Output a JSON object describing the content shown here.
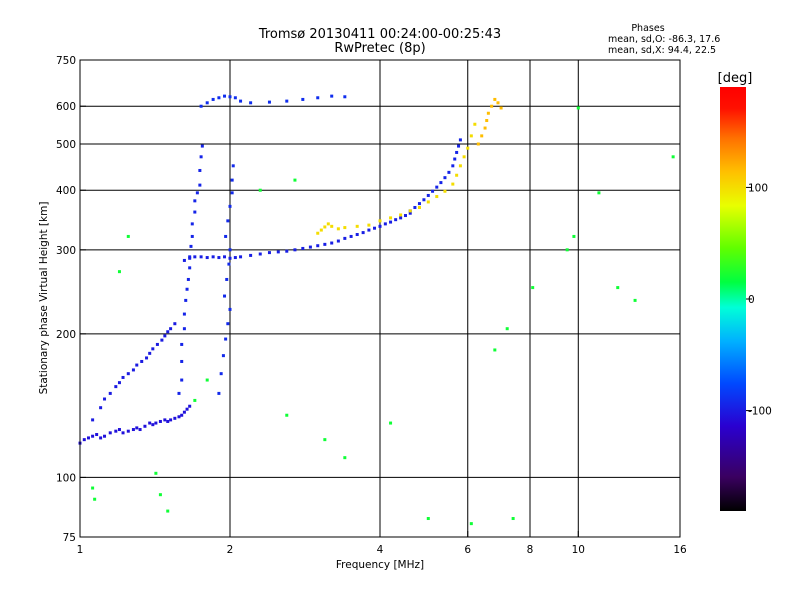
{
  "chart_data": {
    "type": "scatter",
    "title": "Tromsø 20130411 00:24:00-00:25:43",
    "subtitle": "RwPretec (8p)",
    "phases_box": {
      "title": "Phases",
      "line1": "mean, sd,O: -86.3, 17.6",
      "line2": "mean, sd,X:  94.4, 22.5"
    },
    "xlabel": "Frequency [MHz]",
    "ylabel": "Stationary phase Virtual Height [km]",
    "x_scale": "log",
    "y_scale": "log",
    "xlim": [
      1,
      16
    ],
    "ylim": [
      75,
      750
    ],
    "x_ticks": [
      1,
      2,
      4,
      6,
      8,
      10,
      16
    ],
    "x_tick_labels": [
      "1",
      "2",
      "4",
      "6",
      "8",
      "10",
      "16"
    ],
    "x_grid": [
      2,
      4,
      6,
      10
    ],
    "x_minor_grid": [
      8
    ],
    "y_ticks": [
      75,
      100,
      200,
      300,
      400,
      500,
      600,
      750
    ],
    "y_tick_labels": [
      "75",
      "100",
      "200",
      "300",
      "400",
      "500",
      "600",
      "750"
    ],
    "y_grid": [
      100,
      200,
      300,
      400,
      500,
      600
    ],
    "grid": true,
    "colorbar": {
      "label": "[deg]",
      "range": [
        -190,
        190
      ],
      "ticks": [
        100,
        0,
        -100
      ],
      "tick_labels": [
        "100",
        "0",
        "-100"
      ],
      "colors": [
        "#000000",
        "#3a0060",
        "#2a00d0",
        "#0048ff",
        "#00b0ff",
        "#00ffd8",
        "#00ff40",
        "#60ff00",
        "#e8ff00",
        "#ffc000",
        "#ff7000",
        "#ff1000",
        "#ff0000"
      ]
    },
    "series": [
      {
        "id": "O-mode low trace",
        "phase": -105,
        "points": [
          [
            1.0,
            118
          ],
          [
            1.02,
            120
          ],
          [
            1.04,
            121
          ],
          [
            1.06,
            122
          ],
          [
            1.08,
            123
          ],
          [
            1.1,
            121
          ],
          [
            1.12,
            122
          ],
          [
            1.15,
            124
          ],
          [
            1.18,
            125
          ],
          [
            1.2,
            126
          ],
          [
            1.22,
            124
          ],
          [
            1.25,
            125
          ],
          [
            1.28,
            126
          ],
          [
            1.3,
            127
          ],
          [
            1.32,
            126
          ],
          [
            1.35,
            128
          ],
          [
            1.38,
            130
          ],
          [
            1.4,
            129
          ],
          [
            1.42,
            130
          ],
          [
            1.45,
            131
          ],
          [
            1.48,
            132
          ],
          [
            1.5,
            131
          ],
          [
            1.52,
            132
          ],
          [
            1.55,
            133
          ],
          [
            1.58,
            134
          ],
          [
            1.6,
            135
          ],
          [
            1.62,
            137
          ],
          [
            1.64,
            139
          ],
          [
            1.66,
            141
          ]
        ]
      },
      {
        "id": "O-mode rising branch",
        "phase": -100,
        "points": [
          [
            1.06,
            132
          ],
          [
            1.1,
            140
          ],
          [
            1.12,
            146
          ],
          [
            1.15,
            150
          ],
          [
            1.18,
            155
          ],
          [
            1.2,
            158
          ],
          [
            1.22,
            162
          ],
          [
            1.25,
            165
          ],
          [
            1.28,
            168
          ],
          [
            1.3,
            172
          ],
          [
            1.33,
            175
          ],
          [
            1.36,
            178
          ],
          [
            1.38,
            182
          ],
          [
            1.4,
            186
          ],
          [
            1.43,
            190
          ],
          [
            1.46,
            194
          ],
          [
            1.48,
            198
          ],
          [
            1.5,
            202
          ],
          [
            1.52,
            205
          ],
          [
            1.55,
            210
          ]
        ]
      },
      {
        "id": "E-F1 cusp cluster",
        "phase": -95,
        "points": [
          [
            1.58,
            150
          ],
          [
            1.6,
            160
          ],
          [
            1.6,
            175
          ],
          [
            1.6,
            190
          ],
          [
            1.62,
            205
          ],
          [
            1.62,
            220
          ],
          [
            1.63,
            235
          ],
          [
            1.64,
            248
          ],
          [
            1.65,
            260
          ],
          [
            1.66,
            275
          ],
          [
            1.66,
            290
          ],
          [
            1.67,
            305
          ],
          [
            1.68,
            320
          ],
          [
            1.68,
            340
          ],
          [
            1.7,
            360
          ],
          [
            1.7,
            380
          ],
          [
            1.72,
            395
          ],
          [
            1.74,
            410
          ],
          [
            1.74,
            440
          ],
          [
            1.75,
            470
          ],
          [
            1.76,
            495
          ]
        ]
      },
      {
        "id": "cusp column near 2 MHz",
        "phase": -92,
        "points": [
          [
            1.9,
            150
          ],
          [
            1.92,
            165
          ],
          [
            1.94,
            180
          ],
          [
            1.96,
            195
          ],
          [
            1.98,
            210
          ],
          [
            2.0,
            225
          ],
          [
            1.95,
            240
          ],
          [
            1.97,
            260
          ],
          [
            1.99,
            280
          ],
          [
            2.0,
            300
          ],
          [
            1.96,
            320
          ],
          [
            1.98,
            345
          ],
          [
            2.0,
            370
          ],
          [
            2.02,
            395
          ],
          [
            2.02,
            420
          ],
          [
            2.03,
            450
          ]
        ]
      },
      {
        "id": "F2 low ledge",
        "phase": -98,
        "points": [
          [
            1.62,
            285
          ],
          [
            1.66,
            288
          ],
          [
            1.7,
            290
          ],
          [
            1.75,
            290
          ],
          [
            1.8,
            289
          ],
          [
            1.85,
            290
          ],
          [
            1.9,
            289
          ],
          [
            1.95,
            290
          ],
          [
            2.0,
            288
          ],
          [
            2.05,
            289
          ],
          [
            2.1,
            290
          ],
          [
            2.2,
            292
          ],
          [
            2.3,
            294
          ],
          [
            2.4,
            296
          ],
          [
            2.5,
            297
          ],
          [
            2.6,
            298
          ],
          [
            2.7,
            300
          ],
          [
            2.8,
            302
          ],
          [
            2.9,
            304
          ],
          [
            3.0,
            306
          ],
          [
            3.1,
            308
          ],
          [
            3.2,
            310
          ],
          [
            3.3,
            313
          ],
          [
            3.4,
            317
          ],
          [
            3.5,
            320
          ],
          [
            3.6,
            323
          ],
          [
            3.7,
            326
          ],
          [
            3.8,
            330
          ],
          [
            3.9,
            333
          ],
          [
            4.0,
            336
          ],
          [
            4.1,
            340
          ],
          [
            4.2,
            343
          ],
          [
            4.3,
            347
          ],
          [
            4.4,
            350
          ],
          [
            4.5,
            354
          ],
          [
            4.6,
            358
          ]
        ]
      },
      {
        "id": "F2 O-mode upper",
        "phase": -95,
        "points": [
          [
            4.6,
            362
          ],
          [
            4.7,
            368
          ],
          [
            4.8,
            375
          ],
          [
            4.9,
            382
          ],
          [
            5.0,
            390
          ],
          [
            5.1,
            398
          ],
          [
            5.2,
            406
          ],
          [
            5.3,
            415
          ],
          [
            5.4,
            425
          ],
          [
            5.5,
            436
          ],
          [
            5.6,
            450
          ],
          [
            5.65,
            465
          ],
          [
            5.7,
            480
          ],
          [
            5.75,
            495
          ],
          [
            5.8,
            510
          ]
        ]
      },
      {
        "id": "F2 X-mode trace",
        "phase": 100,
        "points": [
          [
            3.0,
            325
          ],
          [
            3.05,
            330
          ],
          [
            3.1,
            335
          ],
          [
            3.15,
            340
          ],
          [
            3.2,
            336
          ],
          [
            3.3,
            332
          ],
          [
            3.4,
            334
          ],
          [
            3.6,
            336
          ],
          [
            3.8,
            338
          ],
          [
            4.0,
            345
          ],
          [
            4.2,
            350
          ],
          [
            4.4,
            355
          ],
          [
            4.6,
            362
          ],
          [
            4.8,
            368
          ],
          [
            5.0,
            378
          ],
          [
            5.2,
            388
          ],
          [
            5.4,
            398
          ],
          [
            5.6,
            412
          ],
          [
            5.7,
            430
          ],
          [
            5.8,
            450
          ],
          [
            5.9,
            470
          ],
          [
            6.0,
            490
          ],
          [
            6.1,
            520
          ],
          [
            6.2,
            550
          ]
        ]
      },
      {
        "id": "X-mode spread near 6 MHz",
        "phase": 115,
        "points": [
          [
            6.3,
            500
          ],
          [
            6.4,
            520
          ],
          [
            6.5,
            540
          ],
          [
            6.55,
            560
          ],
          [
            6.6,
            580
          ],
          [
            6.7,
            600
          ],
          [
            6.8,
            620
          ],
          [
            6.9,
            610
          ],
          [
            7.0,
            595
          ]
        ]
      },
      {
        "id": "cusp top near 620 km",
        "phase": -90,
        "points": [
          [
            1.75,
            600
          ],
          [
            1.8,
            610
          ],
          [
            1.85,
            620
          ],
          [
            1.9,
            625
          ],
          [
            1.95,
            630
          ],
          [
            2.0,
            628
          ],
          [
            2.05,
            625
          ],
          [
            2.1,
            615
          ],
          [
            2.2,
            610
          ],
          [
            2.4,
            612
          ],
          [
            2.6,
            615
          ],
          [
            2.8,
            620
          ],
          [
            3.0,
            625
          ],
          [
            3.2,
            630
          ],
          [
            3.4,
            628
          ]
        ]
      },
      {
        "id": "scattered echoes",
        "phase": 20,
        "points": [
          [
            1.06,
            95
          ],
          [
            1.07,
            90
          ],
          [
            1.42,
            102
          ],
          [
            1.45,
            92
          ],
          [
            1.5,
            85
          ],
          [
            1.7,
            145
          ],
          [
            1.8,
            160
          ],
          [
            2.6,
            135
          ],
          [
            3.1,
            120
          ],
          [
            3.4,
            110
          ],
          [
            4.2,
            130
          ],
          [
            5.0,
            82
          ],
          [
            6.1,
            80
          ],
          [
            6.8,
            185
          ],
          [
            7.2,
            205
          ],
          [
            7.4,
            82
          ],
          [
            8.1,
            250
          ],
          [
            9.5,
            300
          ],
          [
            9.8,
            320
          ],
          [
            10.0,
            595
          ],
          [
            11.0,
            395
          ],
          [
            12.0,
            250
          ],
          [
            13.0,
            235
          ],
          [
            15.5,
            470
          ],
          [
            2.3,
            400
          ],
          [
            2.7,
            420
          ],
          [
            1.2,
            270
          ],
          [
            1.25,
            320
          ]
        ]
      }
    ]
  }
}
